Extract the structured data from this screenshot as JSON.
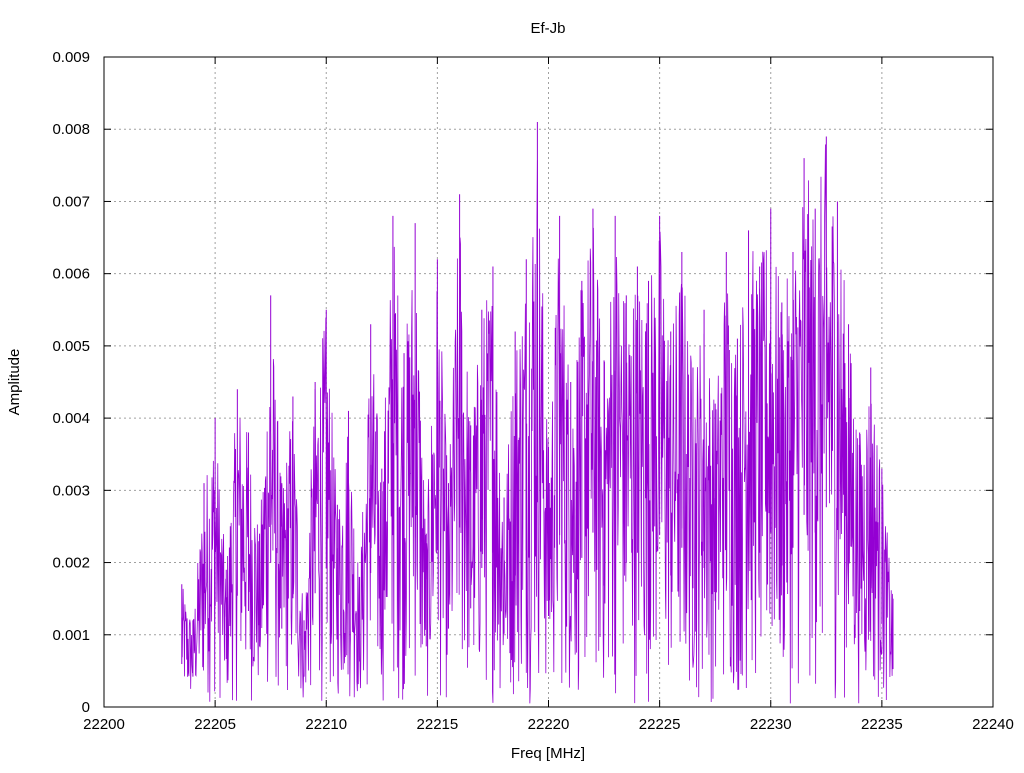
{
  "chart_data": {
    "type": "line",
    "title": "Ef-Jb",
    "xlabel": "Freq [MHz]",
    "ylabel": "Amplitude",
    "xlim": [
      22200,
      22240
    ],
    "ylim": [
      0,
      0.009
    ],
    "xticks": [
      "22200",
      "22205",
      "22210",
      "22215",
      "22220",
      "22225",
      "22230",
      "22235",
      "22240"
    ],
    "yticks": [
      "0",
      "0.001",
      "0.002",
      "0.003",
      "0.004",
      "0.005",
      "0.006",
      "0.007",
      "0.008",
      "0.009"
    ],
    "grid": true,
    "series": [
      {
        "color": "#9400d3",
        "x": [
          22203.5,
          22204.0,
          22204.5,
          22205.0,
          22205.5,
          22206.0,
          22206.5,
          22207.0,
          22207.5,
          22208.0,
          22208.5,
          22209.0,
          22209.5,
          22210.0,
          22210.5,
          22211.0,
          22211.5,
          22212.0,
          22212.5,
          22213.0,
          22213.5,
          22214.0,
          22214.5,
          22215.0,
          22215.5,
          22216.0,
          22216.5,
          22217.0,
          22217.5,
          22218.0,
          22218.5,
          22219.0,
          22219.5,
          22220.0,
          22220.5,
          22221.0,
          22221.5,
          22222.0,
          22222.5,
          22223.0,
          22223.5,
          22224.0,
          22224.5,
          22225.0,
          22225.5,
          22226.0,
          22226.5,
          22227.0,
          22227.5,
          22228.0,
          22228.5,
          22229.0,
          22229.5,
          22230.0,
          22230.5,
          22231.0,
          22231.5,
          22232.0,
          22232.5,
          22233.0,
          22233.5,
          22234.0,
          22234.5,
          22235.0,
          22235.5
        ],
        "y": [
          0.0017,
          0.0012,
          0.0031,
          0.004,
          0.0019,
          0.0044,
          0.0038,
          0.0024,
          0.0057,
          0.0031,
          0.0043,
          0.0012,
          0.0045,
          0.0055,
          0.0028,
          0.0041,
          0.0018,
          0.0053,
          0.0033,
          0.0068,
          0.0049,
          0.0067,
          0.0024,
          0.0062,
          0.0031,
          0.0071,
          0.0039,
          0.0055,
          0.0061,
          0.0029,
          0.0052,
          0.0062,
          0.0081,
          0.0036,
          0.0068,
          0.0045,
          0.0059,
          0.0069,
          0.0048,
          0.0068,
          0.0057,
          0.0061,
          0.0059,
          0.0068,
          0.0052,
          0.0063,
          0.0047,
          0.0055,
          0.0042,
          0.0063,
          0.0051,
          0.0066,
          0.0061,
          0.0069,
          0.0056,
          0.0063,
          0.0076,
          0.0069,
          0.0079,
          0.007,
          0.0053,
          0.0038,
          0.0047,
          0.0033,
          0.0015
        ]
      }
    ]
  }
}
